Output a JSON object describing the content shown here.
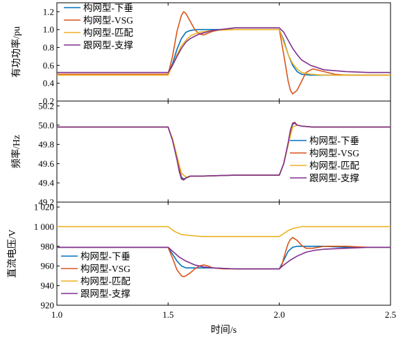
{
  "chart_data": [
    {
      "type": "line",
      "title": "",
      "xlabel": "",
      "ylabel": "有功功率/pu",
      "xlim": [
        1.0,
        2.5
      ],
      "ylim": [
        0.2,
        1.3
      ],
      "yticks": [
        0.2,
        0.4,
        0.6,
        0.8,
        1.0,
        1.2
      ],
      "ytick_labels": [
        "0.2",
        "0.4",
        "0.6",
        "0.8",
        "1.0",
        "1.2"
      ],
      "grid": false,
      "legend": "top-left",
      "series": [
        {
          "name": "构网型-下垂",
          "color": "#0072BD",
          "x": [
            1.0,
            1.5,
            1.52,
            1.54,
            1.56,
            1.58,
            1.6,
            1.63,
            1.66,
            1.7,
            1.8,
            1.9,
            2.0,
            2.02,
            2.04,
            2.06,
            2.08,
            2.1,
            2.14,
            2.2,
            2.3,
            2.4,
            2.5
          ],
          "y": [
            0.5,
            0.5,
            0.62,
            0.78,
            0.9,
            0.97,
            0.99,
            1.0,
            1.0,
            1.0,
            1.0,
            1.0,
            1.0,
            0.88,
            0.72,
            0.6,
            0.53,
            0.5,
            0.49,
            0.49,
            0.49,
            0.49,
            0.49
          ]
        },
        {
          "name": "构网型-VSG",
          "color": "#D95319",
          "x": [
            1.0,
            1.5,
            1.52,
            1.54,
            1.56,
            1.57,
            1.58,
            1.6,
            1.62,
            1.64,
            1.66,
            1.68,
            1.7,
            1.74,
            1.8,
            1.9,
            2.0,
            2.02,
            2.04,
            2.05,
            2.06,
            2.08,
            2.1,
            2.12,
            2.15,
            2.2,
            2.25,
            2.3,
            2.4,
            2.5
          ],
          "y": [
            0.5,
            0.5,
            0.7,
            0.98,
            1.16,
            1.2,
            1.18,
            1.09,
            1.0,
            0.95,
            0.94,
            0.96,
            0.98,
            1.0,
            1.0,
            1.0,
            1.0,
            0.72,
            0.42,
            0.32,
            0.28,
            0.32,
            0.42,
            0.52,
            0.56,
            0.53,
            0.5,
            0.49,
            0.49,
            0.49
          ]
        },
        {
          "name": "构网型-匹配",
          "color": "#EDB120",
          "x": [
            1.0,
            1.5,
            1.52,
            1.54,
            1.56,
            1.58,
            1.6,
            1.64,
            1.7,
            1.8,
            1.9,
            2.0,
            2.02,
            2.04,
            2.06,
            2.08,
            2.1,
            2.14,
            2.2,
            2.3,
            2.4,
            2.5
          ],
          "y": [
            0.49,
            0.49,
            0.6,
            0.72,
            0.82,
            0.88,
            0.93,
            0.97,
            0.99,
            1.0,
            1.0,
            1.0,
            0.86,
            0.72,
            0.62,
            0.56,
            0.52,
            0.5,
            0.49,
            0.49,
            0.49,
            0.49
          ]
        },
        {
          "name": "跟网型-支撑",
          "color": "#7E2F8E",
          "x": [
            1.0,
            1.5,
            1.52,
            1.54,
            1.56,
            1.58,
            1.6,
            1.64,
            1.7,
            1.8,
            1.9,
            2.0,
            2.02,
            2.04,
            2.06,
            2.08,
            2.1,
            2.14,
            2.2,
            2.3,
            2.4,
            2.5
          ],
          "y": [
            0.52,
            0.52,
            0.6,
            0.7,
            0.79,
            0.86,
            0.9,
            0.95,
            0.99,
            1.02,
            1.02,
            1.02,
            0.97,
            0.88,
            0.79,
            0.72,
            0.66,
            0.6,
            0.55,
            0.53,
            0.52,
            0.52
          ]
        }
      ]
    },
    {
      "type": "line",
      "title": "",
      "xlabel": "",
      "ylabel": "频率/Hz",
      "xlim": [
        1.0,
        2.5
      ],
      "ylim": [
        49.2,
        50.25
      ],
      "yticks": [
        49.2,
        49.4,
        49.6,
        49.8,
        50.0,
        50.2
      ],
      "ytick_labels": [
        "49.2",
        "49.4",
        "49.6",
        "49.8",
        "50.0",
        "50.2"
      ],
      "grid": false,
      "legend": "bottom-right",
      "series": [
        {
          "name": "构网型-下垂",
          "color": "#0072BD",
          "x": [
            1.0,
            1.5,
            1.52,
            1.54,
            1.55,
            1.56,
            1.57,
            1.58,
            1.6,
            1.65,
            1.8,
            2.0,
            2.02,
            2.04,
            2.05,
            2.06,
            2.07,
            2.08,
            2.1,
            2.15,
            2.3,
            2.5
          ],
          "y": [
            49.98,
            49.98,
            49.85,
            49.66,
            49.55,
            49.46,
            49.44,
            49.45,
            49.47,
            49.47,
            49.48,
            49.48,
            49.6,
            49.8,
            49.92,
            50.01,
            50.02,
            50.0,
            49.99,
            49.98,
            49.98,
            49.98
          ]
        },
        {
          "name": "构网型-VSG",
          "color": "#D95319",
          "x": [
            1.0,
            1.5,
            1.52,
            1.54,
            1.55,
            1.56,
            1.57,
            1.58,
            1.6,
            1.65,
            1.8,
            2.0,
            2.02,
            2.04,
            2.05,
            2.06,
            2.07,
            2.08,
            2.1,
            2.15,
            2.3,
            2.5
          ],
          "y": [
            49.98,
            49.98,
            49.85,
            49.65,
            49.54,
            49.45,
            49.43,
            49.45,
            49.47,
            49.47,
            49.48,
            49.48,
            49.6,
            49.8,
            49.93,
            50.02,
            50.03,
            50.0,
            49.99,
            49.98,
            49.98,
            49.98
          ]
        },
        {
          "name": "构网型-匹配",
          "color": "#EDB120",
          "x": [
            1.0,
            1.5,
            1.52,
            1.54,
            1.56,
            1.58,
            1.6,
            1.65,
            1.8,
            2.0,
            2.02,
            2.04,
            2.06,
            2.08,
            2.1,
            2.15,
            2.3,
            2.5
          ],
          "y": [
            49.98,
            49.98,
            49.86,
            49.68,
            49.5,
            49.46,
            49.47,
            49.47,
            49.48,
            49.48,
            49.6,
            49.8,
            49.98,
            50.0,
            49.99,
            49.98,
            49.98,
            49.98
          ]
        },
        {
          "name": "跟网型-支撑",
          "color": "#7E2F8E",
          "x": [
            1.0,
            1.5,
            1.52,
            1.54,
            1.55,
            1.56,
            1.57,
            1.58,
            1.6,
            1.65,
            1.8,
            2.0,
            2.02,
            2.04,
            2.05,
            2.06,
            2.07,
            2.08,
            2.1,
            2.15,
            2.3,
            2.5
          ],
          "y": [
            49.98,
            49.98,
            49.84,
            49.64,
            49.52,
            49.44,
            49.43,
            49.45,
            49.47,
            49.47,
            49.48,
            49.48,
            49.6,
            49.82,
            49.95,
            50.02,
            50.02,
            50.0,
            49.99,
            49.98,
            49.98,
            49.98
          ]
        }
      ]
    },
    {
      "type": "line",
      "title": "",
      "xlabel": "时间/s",
      "ylabel": "直流电压/V",
      "xlim": [
        1.0,
        2.5
      ],
      "ylim": [
        920,
        1025
      ],
      "xticks": [
        1.0,
        1.5,
        2.0,
        2.5
      ],
      "xtick_labels": [
        "1.0",
        "1.5",
        "2.0",
        "2.5"
      ],
      "yticks": [
        920,
        940,
        960,
        980,
        1000,
        1020
      ],
      "ytick_labels": [
        "920",
        "940",
        "960",
        "980",
        "1 000",
        "1 020"
      ],
      "grid": false,
      "legend": "bottom-left",
      "series": [
        {
          "name": "构网型-下垂",
          "color": "#0072BD",
          "x": [
            1.0,
            1.5,
            1.52,
            1.54,
            1.56,
            1.58,
            1.6,
            1.65,
            1.7,
            1.8,
            1.9,
            2.0,
            2.02,
            2.04,
            2.06,
            2.08,
            2.1,
            2.2,
            2.3,
            2.5
          ],
          "y": [
            979,
            979,
            972,
            965,
            960,
            958,
            958,
            958,
            958,
            957,
            957,
            957,
            966,
            975,
            979,
            980,
            980,
            980,
            979,
            979
          ]
        },
        {
          "name": "构网型-VSG",
          "color": "#D95319",
          "x": [
            1.0,
            1.5,
            1.52,
            1.54,
            1.56,
            1.57,
            1.58,
            1.6,
            1.62,
            1.64,
            1.66,
            1.68,
            1.7,
            1.75,
            1.8,
            1.9,
            2.0,
            2.01,
            2.02,
            2.03,
            2.04,
            2.05,
            2.06,
            2.08,
            2.1,
            2.12,
            2.15,
            2.2,
            2.3,
            2.4,
            2.5
          ],
          "y": [
            979,
            979,
            968,
            956,
            950,
            949,
            950,
            953,
            957,
            960,
            961,
            960,
            958,
            957,
            957,
            957,
            957,
            960,
            968,
            976,
            983,
            987,
            989,
            986,
            981,
            978,
            978,
            980,
            980,
            979,
            979
          ]
        },
        {
          "name": "构网型-匹配",
          "color": "#EDB120",
          "x": [
            1.0,
            1.5,
            1.53,
            1.56,
            1.6,
            1.65,
            1.7,
            1.8,
            1.9,
            2.0,
            2.02,
            2.04,
            2.06,
            2.08,
            2.1,
            2.15,
            2.2,
            2.3,
            2.5
          ],
          "y": [
            1000,
            1000,
            995,
            992,
            991,
            990,
            990,
            990,
            990,
            990,
            993,
            996,
            998,
            999,
            1000,
            1000,
            1000,
            1000,
            1000
          ]
        },
        {
          "name": "跟网型-支撑",
          "color": "#7E2F8E",
          "x": [
            1.0,
            1.5,
            1.52,
            1.55,
            1.58,
            1.62,
            1.66,
            1.7,
            1.8,
            1.9,
            2.0,
            2.02,
            2.05,
            2.08,
            2.12,
            2.16,
            2.2,
            2.3,
            2.4,
            2.5
          ],
          "y": [
            979,
            979,
            975,
            969,
            965,
            961,
            959,
            958,
            957,
            957,
            957,
            961,
            966,
            970,
            974,
            976,
            977,
            978,
            979,
            979
          ]
        }
      ]
    }
  ]
}
